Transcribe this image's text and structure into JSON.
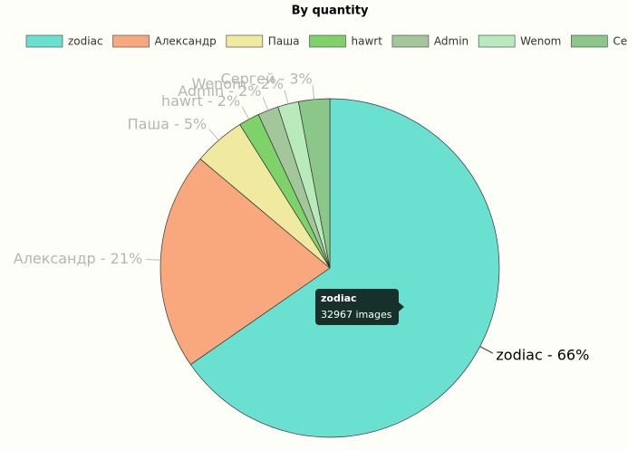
{
  "chart_data": {
    "type": "pie",
    "title": "By quantity",
    "categories": [
      "zodiac",
      "Александр",
      "Паша",
      "hawrt",
      "Admin",
      "Wenom",
      "Сергей"
    ],
    "values": [
      66,
      21,
      5,
      2,
      2,
      2,
      3
    ],
    "value_labels": [
      "zodiac - 66%",
      "Александр - 21%",
      "Паша - 5%",
      "hawrt - 2%",
      "Admin - 2%",
      "Wenom - 2%",
      "Сергей - 3%"
    ],
    "colors": [
      "#6ae0d0",
      "#f9a87e",
      "#f0e9a0",
      "#7dd36a",
      "#a3c79a",
      "#b9eabb",
      "#8cc78a"
    ],
    "legend": "top",
    "tooltip": {
      "title": "zodiac",
      "text": "32967 images"
    }
  }
}
